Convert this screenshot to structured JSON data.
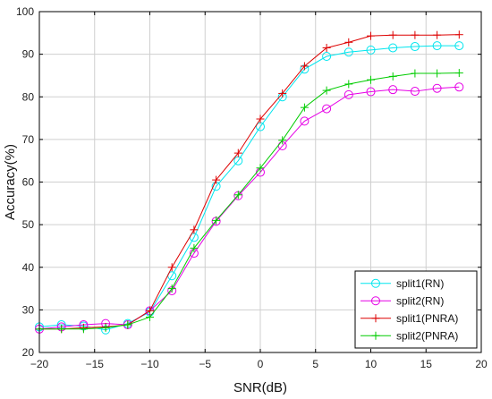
{
  "chart_data": {
    "type": "line",
    "title": "",
    "xlabel": "SNR(dB)",
    "ylabel": "Accuracy(%)",
    "xlim": [
      -20,
      20
    ],
    "ylim": [
      20,
      100
    ],
    "xticks": [
      -20,
      -15,
      -10,
      -5,
      0,
      5,
      10,
      15,
      20
    ],
    "yticks": [
      20,
      30,
      40,
      50,
      60,
      70,
      80,
      90,
      100
    ],
    "grid": true,
    "legend_position": "bottom-right",
    "x": [
      -20,
      -18,
      -16,
      -14,
      -12,
      -10,
      -8,
      -6,
      -4,
      -2,
      0,
      2,
      4,
      6,
      8,
      10,
      12,
      14,
      16,
      18
    ],
    "series": [
      {
        "name": "split1(RN)",
        "color": "#00e5ee",
        "marker": "circle",
        "values": [
          26.0,
          26.5,
          26.2,
          25.3,
          26.8,
          29.5,
          38.0,
          47.0,
          59.0,
          65.0,
          73.0,
          80.0,
          86.5,
          89.5,
          90.5,
          91.0,
          91.5,
          91.8,
          92.0,
          92.0
        ]
      },
      {
        "name": "split2(RN)",
        "color": "#e600e6",
        "marker": "circle",
        "values": [
          25.5,
          26.0,
          26.5,
          26.8,
          26.5,
          29.8,
          34.5,
          43.3,
          50.8,
          56.8,
          62.3,
          68.5,
          74.3,
          77.2,
          80.5,
          81.2,
          81.7,
          81.3,
          82.0,
          82.3
        ]
      },
      {
        "name": "split1(PNRA)",
        "color": "#dd0000",
        "marker": "plus",
        "values": [
          25.5,
          25.5,
          25.8,
          26.0,
          26.5,
          29.8,
          40.0,
          48.8,
          60.5,
          66.8,
          74.8,
          80.8,
          87.2,
          91.5,
          92.8,
          94.3,
          94.5,
          94.5,
          94.5,
          94.6
        ]
      },
      {
        "name": "split2(PNRA)",
        "color": "#00cc00",
        "marker": "plus",
        "values": [
          25.5,
          25.5,
          25.5,
          25.8,
          26.5,
          28.3,
          35.0,
          44.5,
          51.0,
          57.0,
          63.3,
          69.8,
          77.5,
          81.5,
          83.0,
          84.0,
          84.8,
          85.5,
          85.5,
          85.6
        ]
      }
    ]
  }
}
